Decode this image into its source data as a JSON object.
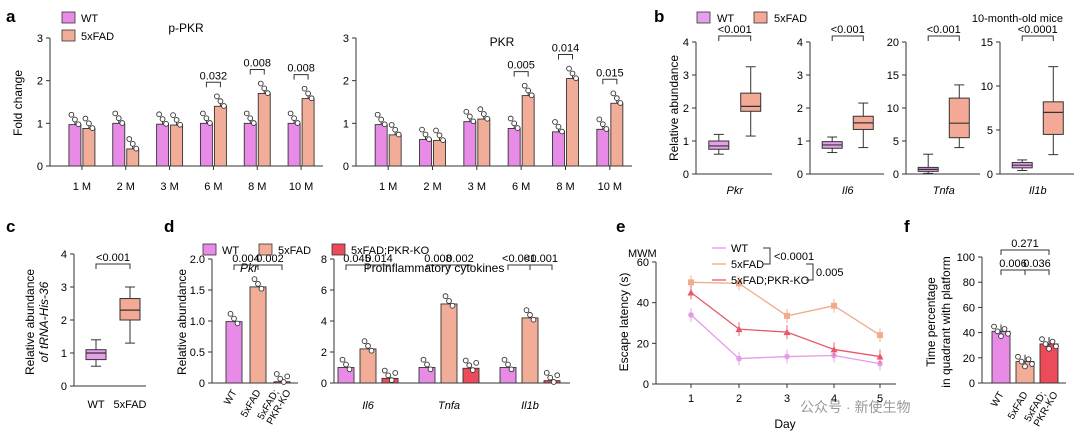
{
  "colors": {
    "wt": "#e88be6",
    "fad": "#f2ad98",
    "ko": "#ec4b59",
    "axis": "#333333",
    "line_wt": "#e59ce6",
    "line_fad": "#f0aa8c",
    "line_ko": "#e8586a",
    "pbox_wt": "#e6a0ea",
    "pbox_fad": "#f4a997"
  },
  "labels": {
    "panel_a": "a",
    "panel_b": "b",
    "panel_c": "c",
    "panel_d": "d",
    "panel_e": "e",
    "panel_f": "f",
    "wt": "WT",
    "fad": "5xFAD",
    "ko": "5xFAD;PKR-KO",
    "fold_change": "Fold change",
    "ppkr_title": "p-PKR",
    "pkr_title": "PKR",
    "b_ylabel": "Relative abundance",
    "b_note": "10-month-old mice",
    "c_ylabel1": "Relative abundance",
    "c_ylabel2": "of tRNA-His-36",
    "d_ylabel": "Relative abundance",
    "d_pkr_title": "Pkr",
    "d_cyt_title": "Proinflammatory cytokines",
    "d_xl_ko1": "5xFAD;",
    "d_xl_ko2": "PKR-KO",
    "e_mwm": "MWM",
    "e_ylabel": "Escape latency (s)",
    "e_xlabel": "Day",
    "f_ylabel1": "Time percentage",
    "f_ylabel2": "in quadrant with platform",
    "watermark": "公众号 · 新使生物"
  },
  "chart_data": [
    {
      "panel": "a-left",
      "type": "bar",
      "title": "p-PKR",
      "ylabel": "Fold change",
      "ylim": [
        0,
        3
      ],
      "yticks": [
        "0",
        "1",
        "2",
        "3"
      ],
      "categories": [
        "1 M",
        "2 M",
        "3 M",
        "6 M",
        "8 M",
        "10 M"
      ],
      "series": [
        {
          "name": "WT",
          "values": [
            0.97,
            1.0,
            0.98,
            1.0,
            1.0,
            1.0
          ]
        },
        {
          "name": "5xFAD",
          "values": [
            0.88,
            0.4,
            0.96,
            1.4,
            1.7,
            1.58
          ]
        }
      ],
      "pvalues": [
        "",
        "",
        "",
        "0.032",
        "0.008",
        "0.008"
      ]
    },
    {
      "panel": "a-right",
      "type": "bar",
      "title": "PKR",
      "ylim": [
        0,
        3
      ],
      "yticks": [
        "0",
        "1",
        "2",
        "3"
      ],
      "categories": [
        "1 M",
        "2 M",
        "3 M",
        "6 M",
        "8 M",
        "10 M"
      ],
      "series": [
        {
          "name": "WT",
          "values": [
            0.97,
            0.62,
            1.04,
            0.88,
            0.8,
            0.86
          ]
        },
        {
          "name": "5xFAD",
          "values": [
            0.73,
            0.6,
            1.1,
            1.65,
            2.05,
            1.47
          ]
        }
      ],
      "pvalues": [
        "",
        "",
        "",
        "0.005",
        "0.014",
        "0.015"
      ]
    },
    {
      "panel": "b",
      "type": "box",
      "ylabel": "Relative abundance",
      "note": "10-month-old mice",
      "subplots": [
        {
          "gene": "Pkr",
          "ylim": [
            0,
            4
          ],
          "yticks": [
            "0",
            "1",
            "2",
            "3",
            "4"
          ],
          "pvalue": "<0.001",
          "WT": [
            0.6,
            0.75,
            0.85,
            1.0,
            1.2
          ],
          "5xFAD": [
            1.15,
            1.9,
            2.05,
            2.45,
            3.25
          ]
        },
        {
          "gene": "Il6",
          "ylim": [
            0,
            4
          ],
          "yticks": [
            "0",
            "1",
            "2",
            "3",
            "4"
          ],
          "pvalue": "<0.001",
          "WT": [
            0.65,
            0.78,
            0.88,
            0.98,
            1.12
          ],
          "5xFAD": [
            0.8,
            1.35,
            1.55,
            1.75,
            2.15
          ]
        },
        {
          "gene": "Tnfa",
          "ylim": [
            0,
            20
          ],
          "yticks": [
            "0",
            "5",
            "10",
            "15",
            "20"
          ],
          "pvalue": "<0.001",
          "WT": [
            0.1,
            0.4,
            0.7,
            1.0,
            3.0
          ],
          "5xFAD": [
            4.0,
            5.5,
            7.7,
            11.5,
            13.5
          ]
        },
        {
          "gene": "Il1b",
          "ylim": [
            0,
            15
          ],
          "yticks": [
            "0",
            "5",
            "10",
            "15"
          ],
          "pvalue": "<0.0001",
          "WT": [
            0.4,
            0.7,
            1.0,
            1.3,
            1.6
          ],
          "5xFAD": [
            2.2,
            4.5,
            7.0,
            8.2,
            12.2
          ]
        }
      ]
    },
    {
      "panel": "c",
      "type": "box",
      "ylabel": "Relative abundance of tRNA-His-36",
      "ylim": [
        0,
        4
      ],
      "yticks": [
        "0",
        "1",
        "2",
        "3",
        "4"
      ],
      "categories": [
        "WT",
        "5xFAD"
      ],
      "pvalue": "<0.001",
      "WT": [
        0.6,
        0.8,
        1.0,
        1.1,
        1.4
      ],
      "5xFAD": [
        1.3,
        2.0,
        2.3,
        2.65,
        3.0
      ]
    },
    {
      "panel": "d-left",
      "type": "bar",
      "title": "Pkr",
      "ylabel": "Relative abundance",
      "ylim": [
        0,
        2.0
      ],
      "yticks": [
        "0",
        "0.5",
        "1.0",
        "1.5",
        "2.0"
      ],
      "categories": [
        "WT",
        "5xFAD",
        "5xFAD;PKR-KO"
      ],
      "values": [
        0.99,
        1.55,
        0.02
      ],
      "pvalues": [
        "0.004",
        "0.002"
      ]
    },
    {
      "panel": "d-right",
      "type": "bar",
      "title": "Proinflammatory cytokines",
      "ylim": [
        0,
        8
      ],
      "yticks": [
        "0",
        "2",
        "4",
        "6",
        "8"
      ],
      "categories": [
        "Il6",
        "Tnfa",
        "Il1b"
      ],
      "series": [
        {
          "name": "WT",
          "values": [
            1.0,
            1.0,
            1.0
          ]
        },
        {
          "name": "5xFAD",
          "values": [
            2.2,
            5.1,
            4.2
          ]
        },
        {
          "name": "5xFAD;PKR-KO",
          "values": [
            0.3,
            0.95,
            0.15
          ]
        }
      ],
      "pvalues": [
        [
          "0.045",
          "0.014"
        ],
        [
          "0.008",
          "0.002"
        ],
        [
          "<0.001",
          "<0.001"
        ]
      ]
    },
    {
      "panel": "e",
      "type": "line",
      "ylabel": "Escape latency (s)",
      "xlabel": "Day",
      "ylim": [
        0,
        60
      ],
      "yticks": [
        "0",
        "20",
        "40",
        "60"
      ],
      "x": [
        "1",
        "2",
        "3",
        "4",
        "5"
      ],
      "series": [
        {
          "name": "WT",
          "values": [
            34,
            12.5,
            13.5,
            14,
            10
          ]
        },
        {
          "name": "5xFAD",
          "values": [
            50,
            49.5,
            33.5,
            38.5,
            24
          ]
        },
        {
          "name": "5xFAD;PKR-KO",
          "values": [
            45,
            27,
            25.5,
            17,
            13.5
          ]
        }
      ],
      "stats": [
        "<0.0001",
        "0.005"
      ]
    },
    {
      "panel": "f",
      "type": "bar",
      "ylabel": "Time percentage in quadrant with platform",
      "ylim": [
        0,
        100
      ],
      "yticks": [
        "0",
        "20",
        "40",
        "60",
        "80",
        "100"
      ],
      "categories": [
        "WT",
        "5xFAD",
        "5xFAD;PKR-KO"
      ],
      "values": [
        41,
        17,
        31
      ],
      "pvalues": [
        "0.006",
        "0.036",
        "0.271"
      ]
    }
  ]
}
